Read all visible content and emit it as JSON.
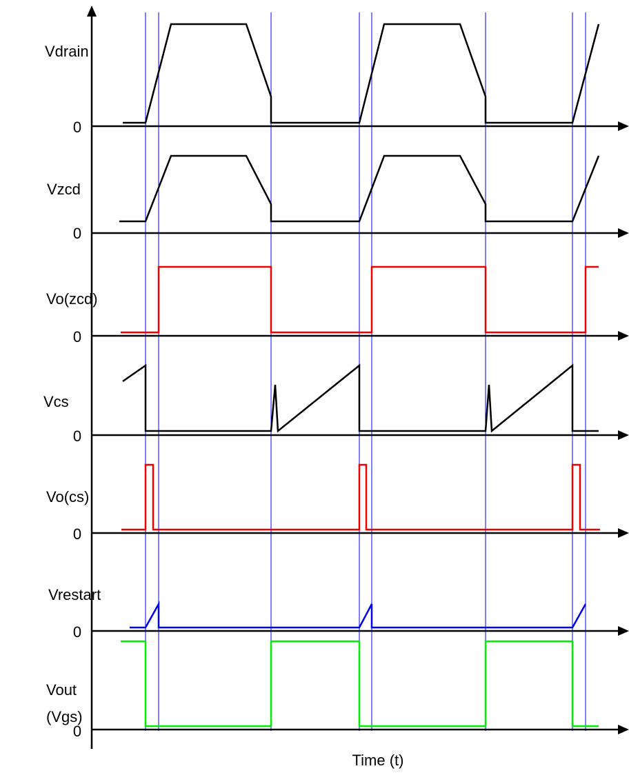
{
  "x_label": "Time (t)",
  "zero_label": "0",
  "colors": {
    "axis": "#000000",
    "marker": "#0000ff",
    "black": "#000000",
    "red": "#ee0000",
    "blue": "#0000ee",
    "green": "#00ee00"
  },
  "signals": [
    {
      "id": "vdrain",
      "lines": [
        "Vdrain"
      ],
      "color": "black"
    },
    {
      "id": "vzcd",
      "lines": [
        "Vzcd"
      ],
      "color": "black"
    },
    {
      "id": "vo-zcd",
      "lines": [
        "Vo(zcd)"
      ],
      "color": "red"
    },
    {
      "id": "vcs",
      "lines": [
        "Vcs"
      ],
      "color": "black"
    },
    {
      "id": "vo-cs",
      "lines": [
        "Vo(cs)"
      ],
      "color": "red"
    },
    {
      "id": "vrestart",
      "lines": [
        "Vrestart"
      ],
      "color": "blue"
    },
    {
      "id": "vout",
      "lines": [
        "Vout",
        "(Vgs)"
      ],
      "color": "green"
    }
  ]
}
